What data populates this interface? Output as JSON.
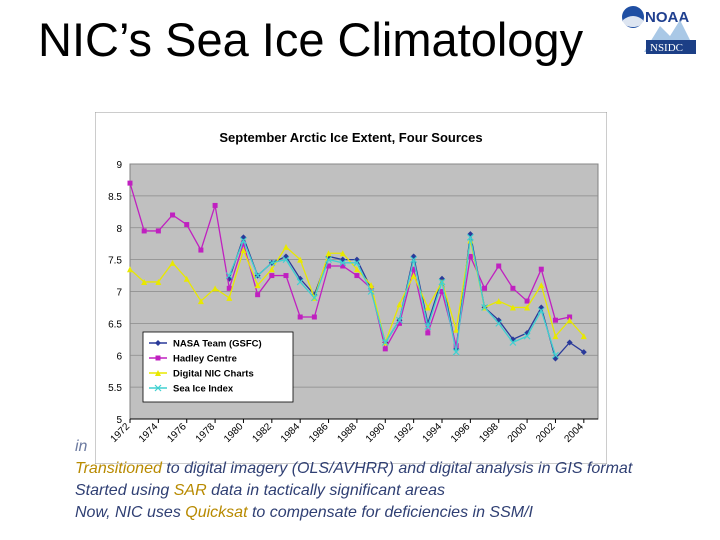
{
  "slide": {
    "title": "NIC’s Sea Ice Climatology",
    "logo_text": {
      "noaa": "NOAA",
      "nsidc": "NSIDC"
    },
    "bullets": [
      {
        "parts": [
          {
            "text": "in",
            "highlight": false
          }
        ]
      },
      {
        "parts": [
          {
            "text": "Transitioned",
            "highlight": true
          },
          {
            "text": " to digital imagery (OLS/AVHRR) and digital analysis in GIS format",
            "highlight": false
          }
        ]
      },
      {
        "parts": [
          {
            "text": "Started using ",
            "highlight": false
          },
          {
            "text": "SAR",
            "highlight": true
          },
          {
            "text": " data in tactically significant areas",
            "highlight": false
          }
        ]
      },
      {
        "parts": [
          {
            "text": "Now, NIC uses ",
            "highlight": false
          },
          {
            "text": "Quicksat",
            "highlight": true
          },
          {
            "text": " to compensate for deficiencies in SSM/I",
            "highlight": false
          }
        ]
      }
    ],
    "colors": {
      "bullet_text": "#2f3f73",
      "highlight": "#b88a00"
    }
  },
  "chart_data": {
    "type": "line",
    "title": "September Arctic Ice Extent, Four Sources",
    "xlabel": "",
    "ylabel": "",
    "ylim": [
      5,
      9
    ],
    "yticks": [
      "5",
      "5.5",
      "6",
      "6.5",
      "7",
      "7.5",
      "8",
      "8.5",
      "9"
    ],
    "xticks": [
      "1972",
      "1974",
      "1976",
      "1978",
      "1980",
      "1982",
      "1984",
      "1986",
      "1988",
      "1990",
      "1992",
      "1994",
      "1996",
      "1998",
      "2000",
      "2002",
      "2004"
    ],
    "grid": true,
    "legend_position": "bottom-left",
    "plot_background": "#c0c0c0",
    "series": [
      {
        "name": "NASA Team (GSFC)",
        "color": "#2a3a9a",
        "marker": "diamond",
        "x": [
          1979,
          1980,
          1981,
          1982,
          1983,
          1984,
          1985,
          1986,
          1987,
          1988,
          1989,
          1990,
          1991,
          1992,
          1993,
          1994,
          1995,
          1996,
          1997,
          1998,
          1999,
          2000,
          2001,
          2002,
          2003,
          2004
        ],
        "y": [
          7.2,
          7.85,
          7.25,
          7.45,
          7.55,
          7.2,
          6.95,
          7.55,
          7.5,
          7.5,
          7.05,
          6.2,
          6.55,
          7.55,
          6.5,
          7.2,
          6.1,
          7.9,
          6.75,
          6.55,
          6.25,
          6.35,
          6.75,
          5.95,
          6.2,
          6.05
        ]
      },
      {
        "name": "Hadley Centre",
        "color": "#c020c0",
        "marker": "square",
        "x": [
          1972,
          1973,
          1974,
          1975,
          1976,
          1977,
          1978,
          1979,
          1980,
          1981,
          1982,
          1983,
          1984,
          1985,
          1986,
          1987,
          1988,
          1989,
          1990,
          1991,
          1992,
          1993,
          1994,
          1995,
          1996,
          1997,
          1998,
          1999,
          2000,
          2001,
          2002,
          2003
        ],
        "y": [
          8.7,
          7.95,
          7.95,
          8.2,
          8.05,
          7.65,
          8.35,
          7.05,
          7.75,
          6.95,
          7.25,
          7.25,
          6.6,
          6.6,
          7.4,
          7.4,
          7.25,
          7.05,
          6.1,
          6.5,
          7.35,
          6.35,
          7.0,
          6.15,
          7.55,
          7.05,
          7.4,
          7.05,
          6.85,
          7.35,
          6.55,
          6.6
        ]
      },
      {
        "name": "Digital NIC Charts",
        "color": "#e8e800",
        "marker": "triangle",
        "x": [
          1972,
          1973,
          1974,
          1975,
          1976,
          1977,
          1978,
          1979,
          1980,
          1981,
          1982,
          1983,
          1984,
          1985,
          1986,
          1987,
          1988,
          1989,
          1990,
          1991,
          1992,
          1993,
          1994,
          1995,
          1996,
          1997,
          1998,
          1999,
          2000,
          2001,
          2002,
          2003,
          2004
        ],
        "y": [
          7.35,
          7.15,
          7.15,
          7.45,
          7.2,
          6.85,
          7.05,
          6.9,
          7.65,
          7.1,
          7.35,
          7.7,
          7.5,
          6.9,
          7.6,
          7.6,
          7.35,
          7.1,
          6.2,
          6.8,
          7.25,
          6.75,
          7.15,
          6.4,
          7.8,
          6.75,
          6.85,
          6.75,
          6.75,
          7.1,
          6.3,
          6.55,
          6.3
        ]
      },
      {
        "name": "Sea Ice Index",
        "color": "#40d0d0",
        "marker": "x",
        "x": [
          1979,
          1980,
          1981,
          1982,
          1983,
          1984,
          1985,
          1986,
          1987,
          1988,
          1989,
          1990,
          1991,
          1992,
          1993,
          1994,
          1995,
          1996,
          1997,
          1998,
          1999,
          2000,
          2001,
          2002
        ],
        "y": [
          7.25,
          7.8,
          7.25,
          7.45,
          7.5,
          7.15,
          6.9,
          7.5,
          7.45,
          7.45,
          7.0,
          6.2,
          6.55,
          7.5,
          6.45,
          7.15,
          6.05,
          7.85,
          6.75,
          6.5,
          6.2,
          6.3,
          6.7,
          6.0
        ]
      }
    ]
  }
}
